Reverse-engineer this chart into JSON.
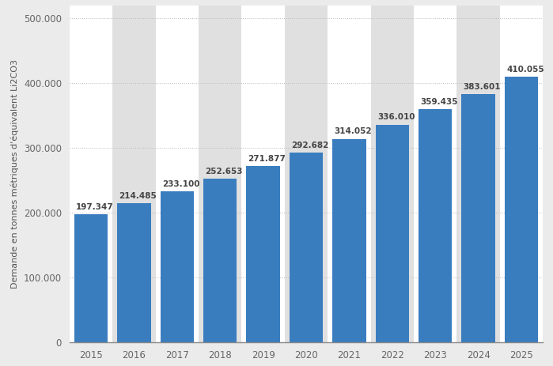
{
  "years": [
    "2015",
    "2016",
    "2017",
    "2018",
    "2019",
    "2020",
    "2021",
    "2022",
    "2023",
    "2024",
    "2025"
  ],
  "values": [
    197347,
    214485,
    233100,
    252653,
    271877,
    292682,
    314052,
    336010,
    359435,
    383601,
    410055
  ],
  "labels": [
    "197.347",
    "214.485",
    "233.100",
    "252.653",
    "271.877",
    "292.682",
    "314.052",
    "336.010",
    "359.435",
    "383.601",
    "410.055"
  ],
  "bar_color": "#3a7dbf",
  "background_color": "#ebebeb",
  "plot_bg_color": "#ffffff",
  "alt_bg_color": "#e0e0e0",
  "ylabel": "Demande en tonnes métriques d'équivalent Li2CO3",
  "ylim": [
    0,
    520000
  ],
  "yticks": [
    0,
    100000,
    200000,
    300000,
    400000,
    500000
  ],
  "ytick_labels": [
    "0",
    "100.000",
    "200.000",
    "300.000",
    "400.000",
    "500.000"
  ],
  "grid_color": "#bbbbbb",
  "label_fontsize": 7.5,
  "tick_fontsize": 8.5,
  "ylabel_fontsize": 8.0,
  "bar_width": 0.78
}
